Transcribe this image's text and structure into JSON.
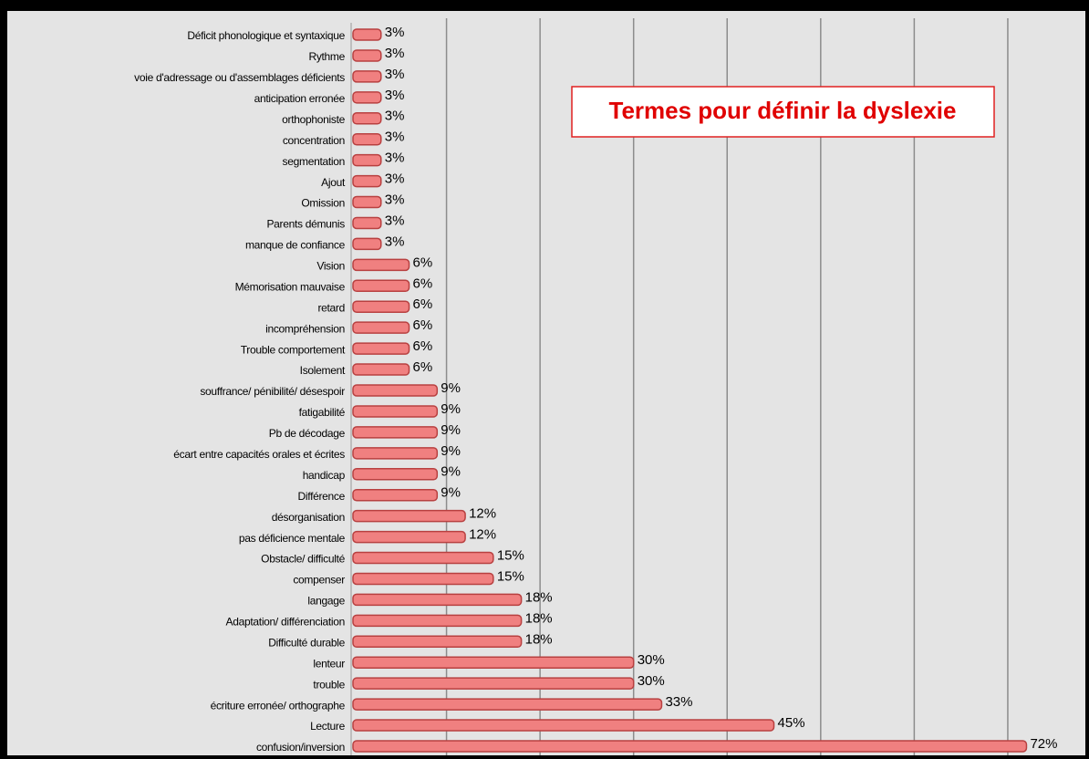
{
  "chart_data": {
    "type": "bar",
    "orientation": "horizontal",
    "title": "Termes pour définir la dyslexie",
    "categories": [
      "Déficit phonologique et syntaxique",
      "Rythme",
      "voie d'adressage ou d'assemblages déficients",
      "anticipation erronée",
      "orthophoniste",
      "concentration",
      "segmentation",
      "Ajout",
      "Omission",
      "Parents démunis",
      "manque de confiance",
      "Vision",
      "Mémorisation mauvaise",
      "retard",
      "incompréhension",
      "Trouble comportement",
      "Isolement",
      "souffrance/ pénibilité/ désespoir",
      "fatigabilité",
      "Pb de décodage",
      "écart entre capacités orales et écrites",
      "handicap",
      "Différence",
      "désorganisation",
      "pas déficience mentale",
      "Obstacle/ difficulté",
      "compenser",
      "langage",
      "Adaptation/ différenciation",
      "Difficulté durable",
      "lenteur",
      "trouble",
      "écriture erronée/ orthographe",
      "Lecture",
      "confusion/inversion"
    ],
    "values": [
      3,
      3,
      3,
      3,
      3,
      3,
      3,
      3,
      3,
      3,
      3,
      6,
      6,
      6,
      6,
      6,
      6,
      9,
      9,
      9,
      9,
      9,
      9,
      12,
      12,
      15,
      15,
      18,
      18,
      18,
      30,
      30,
      33,
      45,
      72
    ],
    "value_labels": [
      "3%",
      "3%",
      "3%",
      "3%",
      "3%",
      "3%",
      "3%",
      "3%",
      "3%",
      "3%",
      "3%",
      "6%",
      "6%",
      "6%",
      "6%",
      "6%",
      "6%",
      "9%",
      "9%",
      "9%",
      "9%",
      "9%",
      "9%",
      "12%",
      "12%",
      "15%",
      "15%",
      "18%",
      "18%",
      "18%",
      "30%",
      "30%",
      "33%",
      "45%",
      "72%"
    ],
    "color": "#f08080",
    "xlim": [
      0,
      78
    ],
    "xticks": [
      10,
      20,
      30,
      40,
      50,
      60,
      70
    ],
    "grid": true
  }
}
